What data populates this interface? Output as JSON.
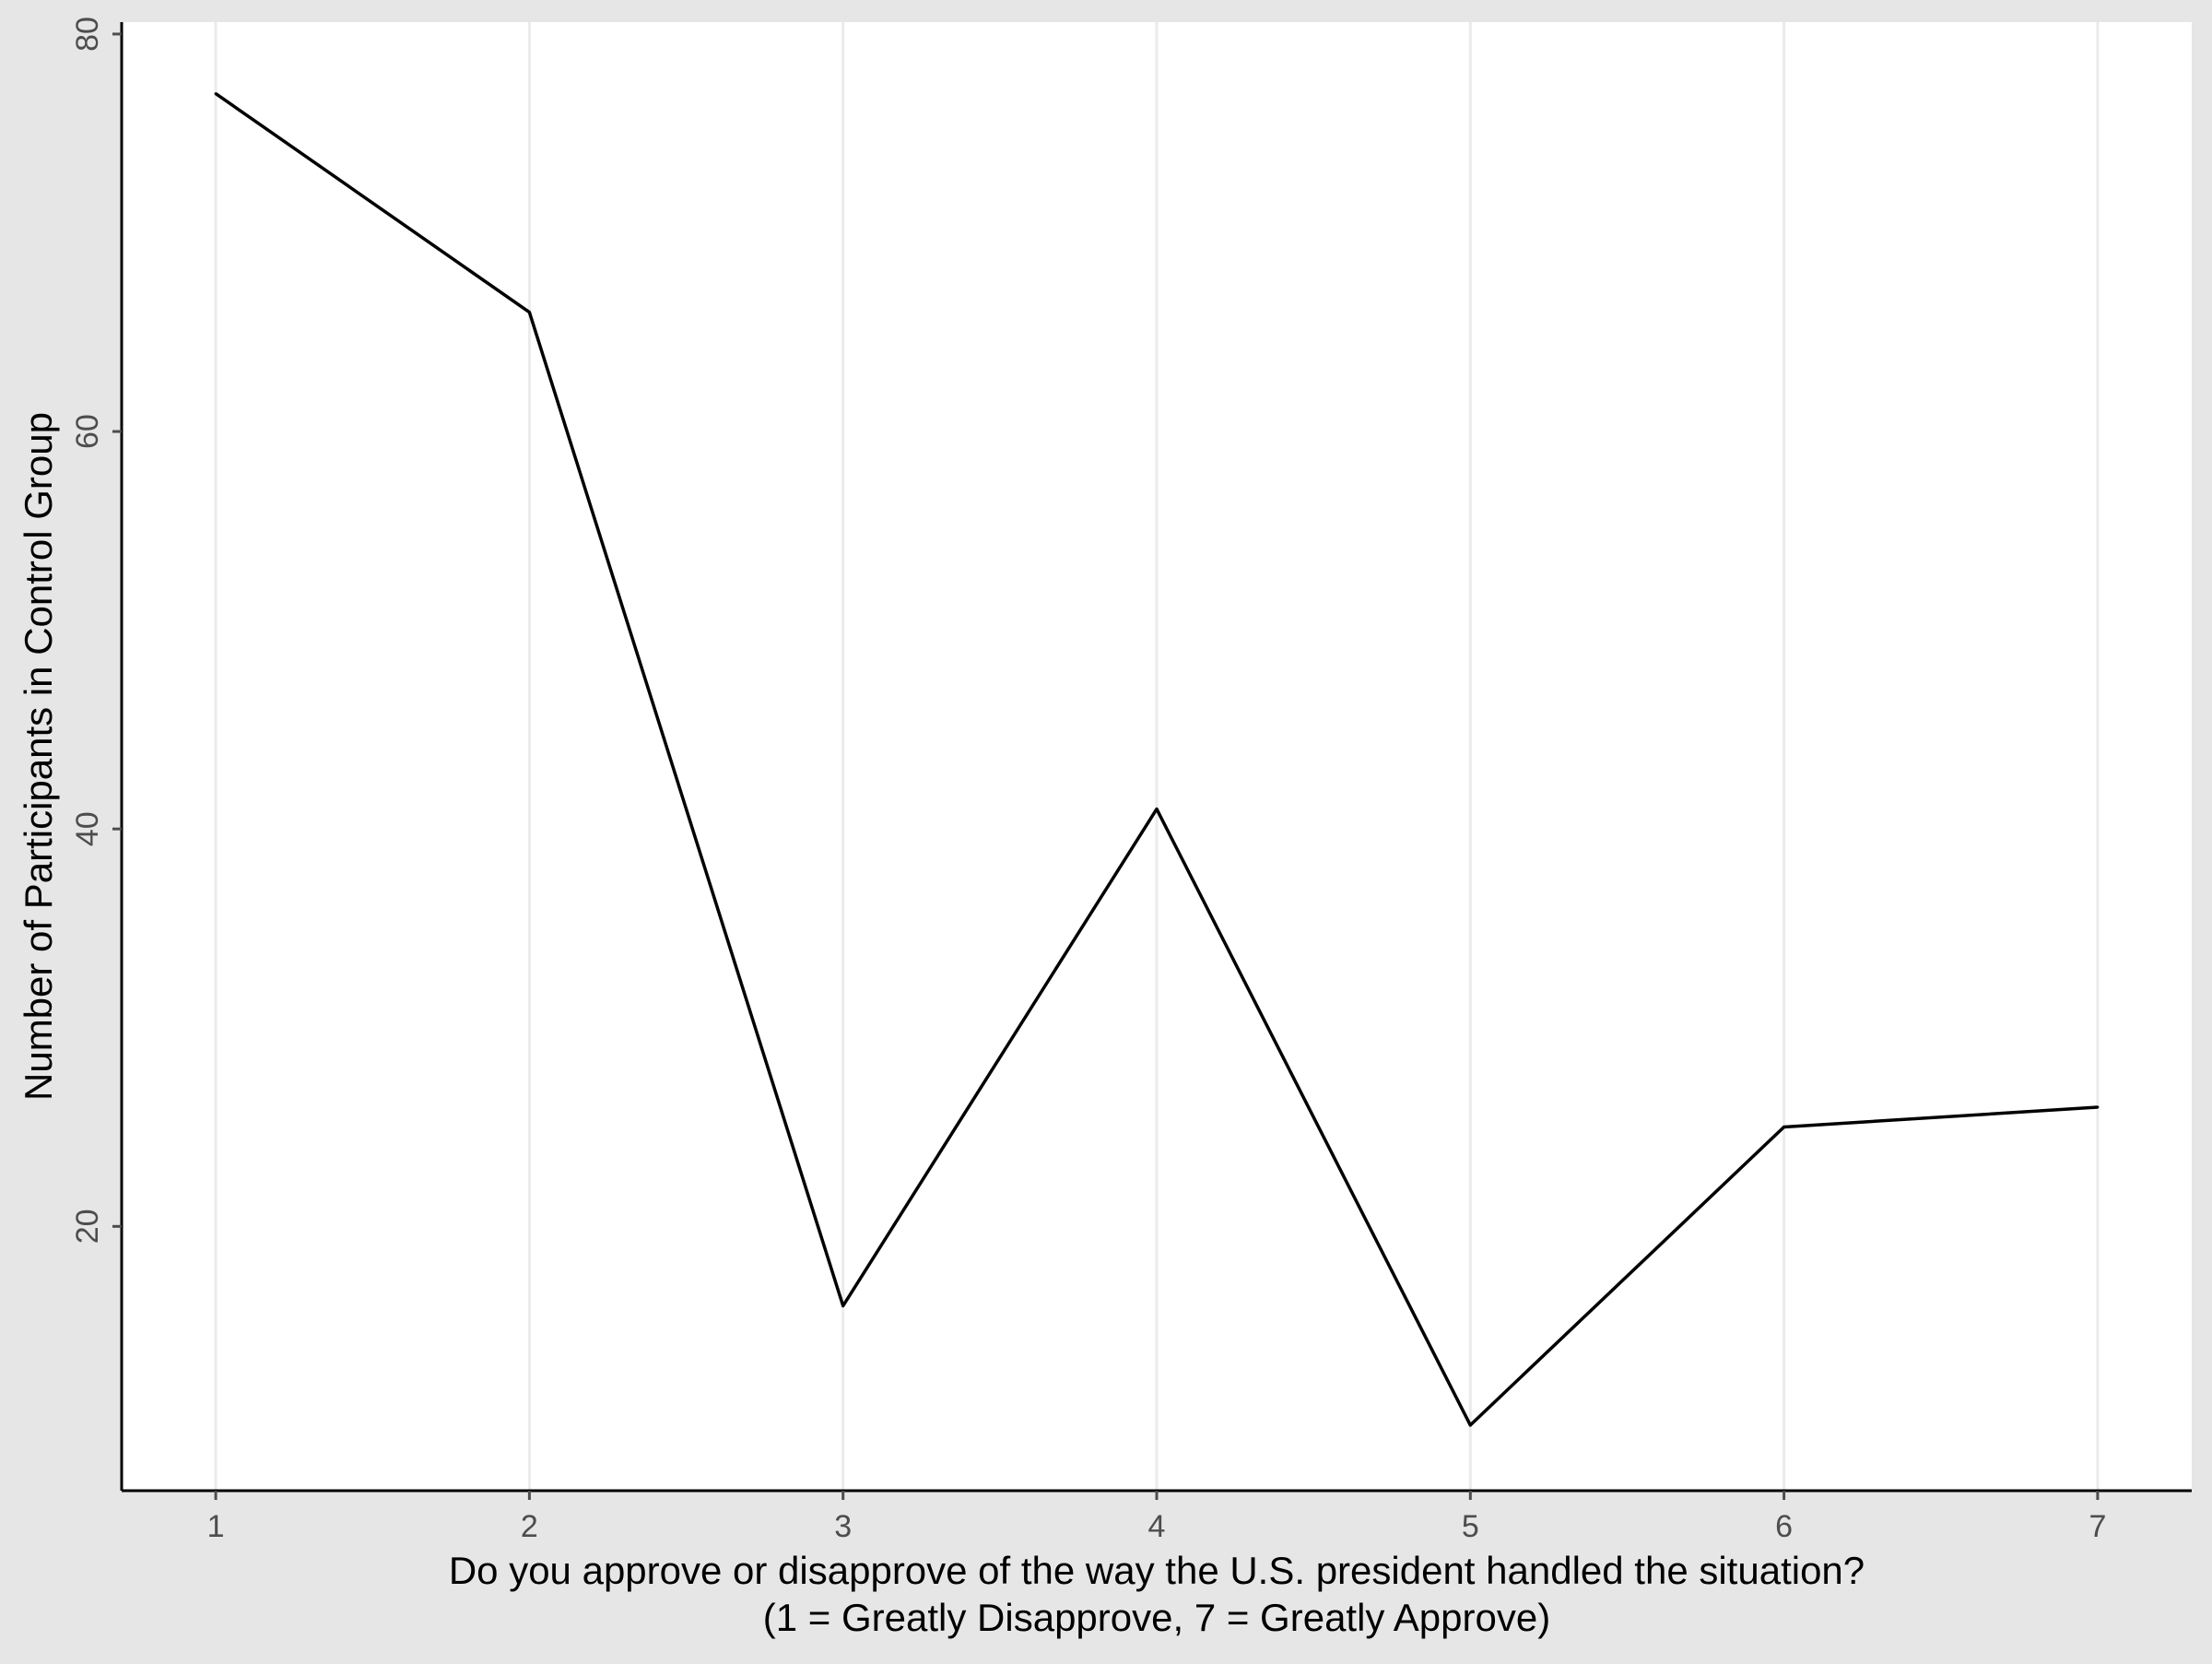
{
  "colors": {
    "background": "#e6e6e6",
    "panel": "#ffffff",
    "grid": "#ebebeb",
    "line": "#000000",
    "axis": "#000000",
    "tick_text": "#4d4d4d",
    "label_text": "#000000"
  },
  "chart_data": {
    "type": "line",
    "title": "",
    "xlabel_lines": [
      "Do you approve or disapprove of the way the U.S. president handled the situation?",
      "(1 = Greatly Disapprove, 7 = Greatly Approve)"
    ],
    "ylabel": "Number of Participants in Control Group",
    "x": [
      1,
      2,
      3,
      4,
      5,
      6,
      7
    ],
    "values": [
      77,
      66,
      16,
      41,
      10,
      25,
      26
    ],
    "xticks": [
      "1",
      "2",
      "3",
      "4",
      "5",
      "6",
      "7"
    ],
    "yticks": [
      20,
      40,
      60,
      80
    ],
    "ytick_labels": [
      "20",
      "40",
      "60",
      "80"
    ],
    "xlim": [
      0.7,
      7.3
    ],
    "ylim": [
      6.7,
      80.6
    ],
    "grid": "vertical major lines only",
    "legend": "none"
  }
}
